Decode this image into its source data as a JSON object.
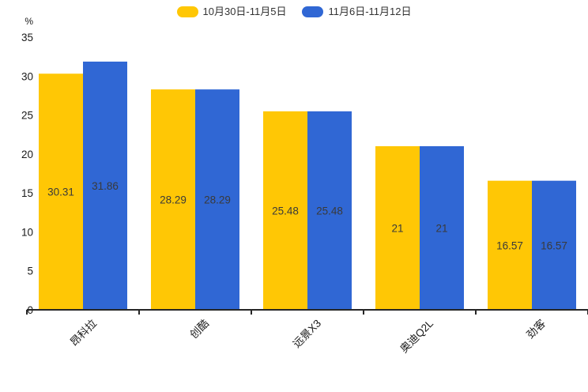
{
  "chart_data": {
    "type": "bar",
    "title": "",
    "categories": [
      "昂科拉",
      "创酷",
      "远景X3",
      "奥迪Q2L",
      "劲客"
    ],
    "series": [
      {
        "name": "10月30日-11月5日",
        "color": "#ffc705",
        "values": [
          30.31,
          28.29,
          25.48,
          21,
          16.57
        ]
      },
      {
        "name": "11月6日-11月12日",
        "color": "#3067d4",
        "values": [
          31.86,
          28.29,
          25.48,
          21,
          16.57
        ]
      }
    ],
    "ylabel": "%",
    "yticks": [
      0,
      5,
      10,
      15,
      20,
      25,
      30,
      35
    ],
    "ylim": [
      0,
      35
    ],
    "grid": false,
    "legend_position": "top-center",
    "value_labels_shown": true,
    "value_label_color": "#3a3a3a",
    "axis_color": "#262626",
    "tick_text_color": "#1a1a1a",
    "background_color": "#ffffff"
  }
}
